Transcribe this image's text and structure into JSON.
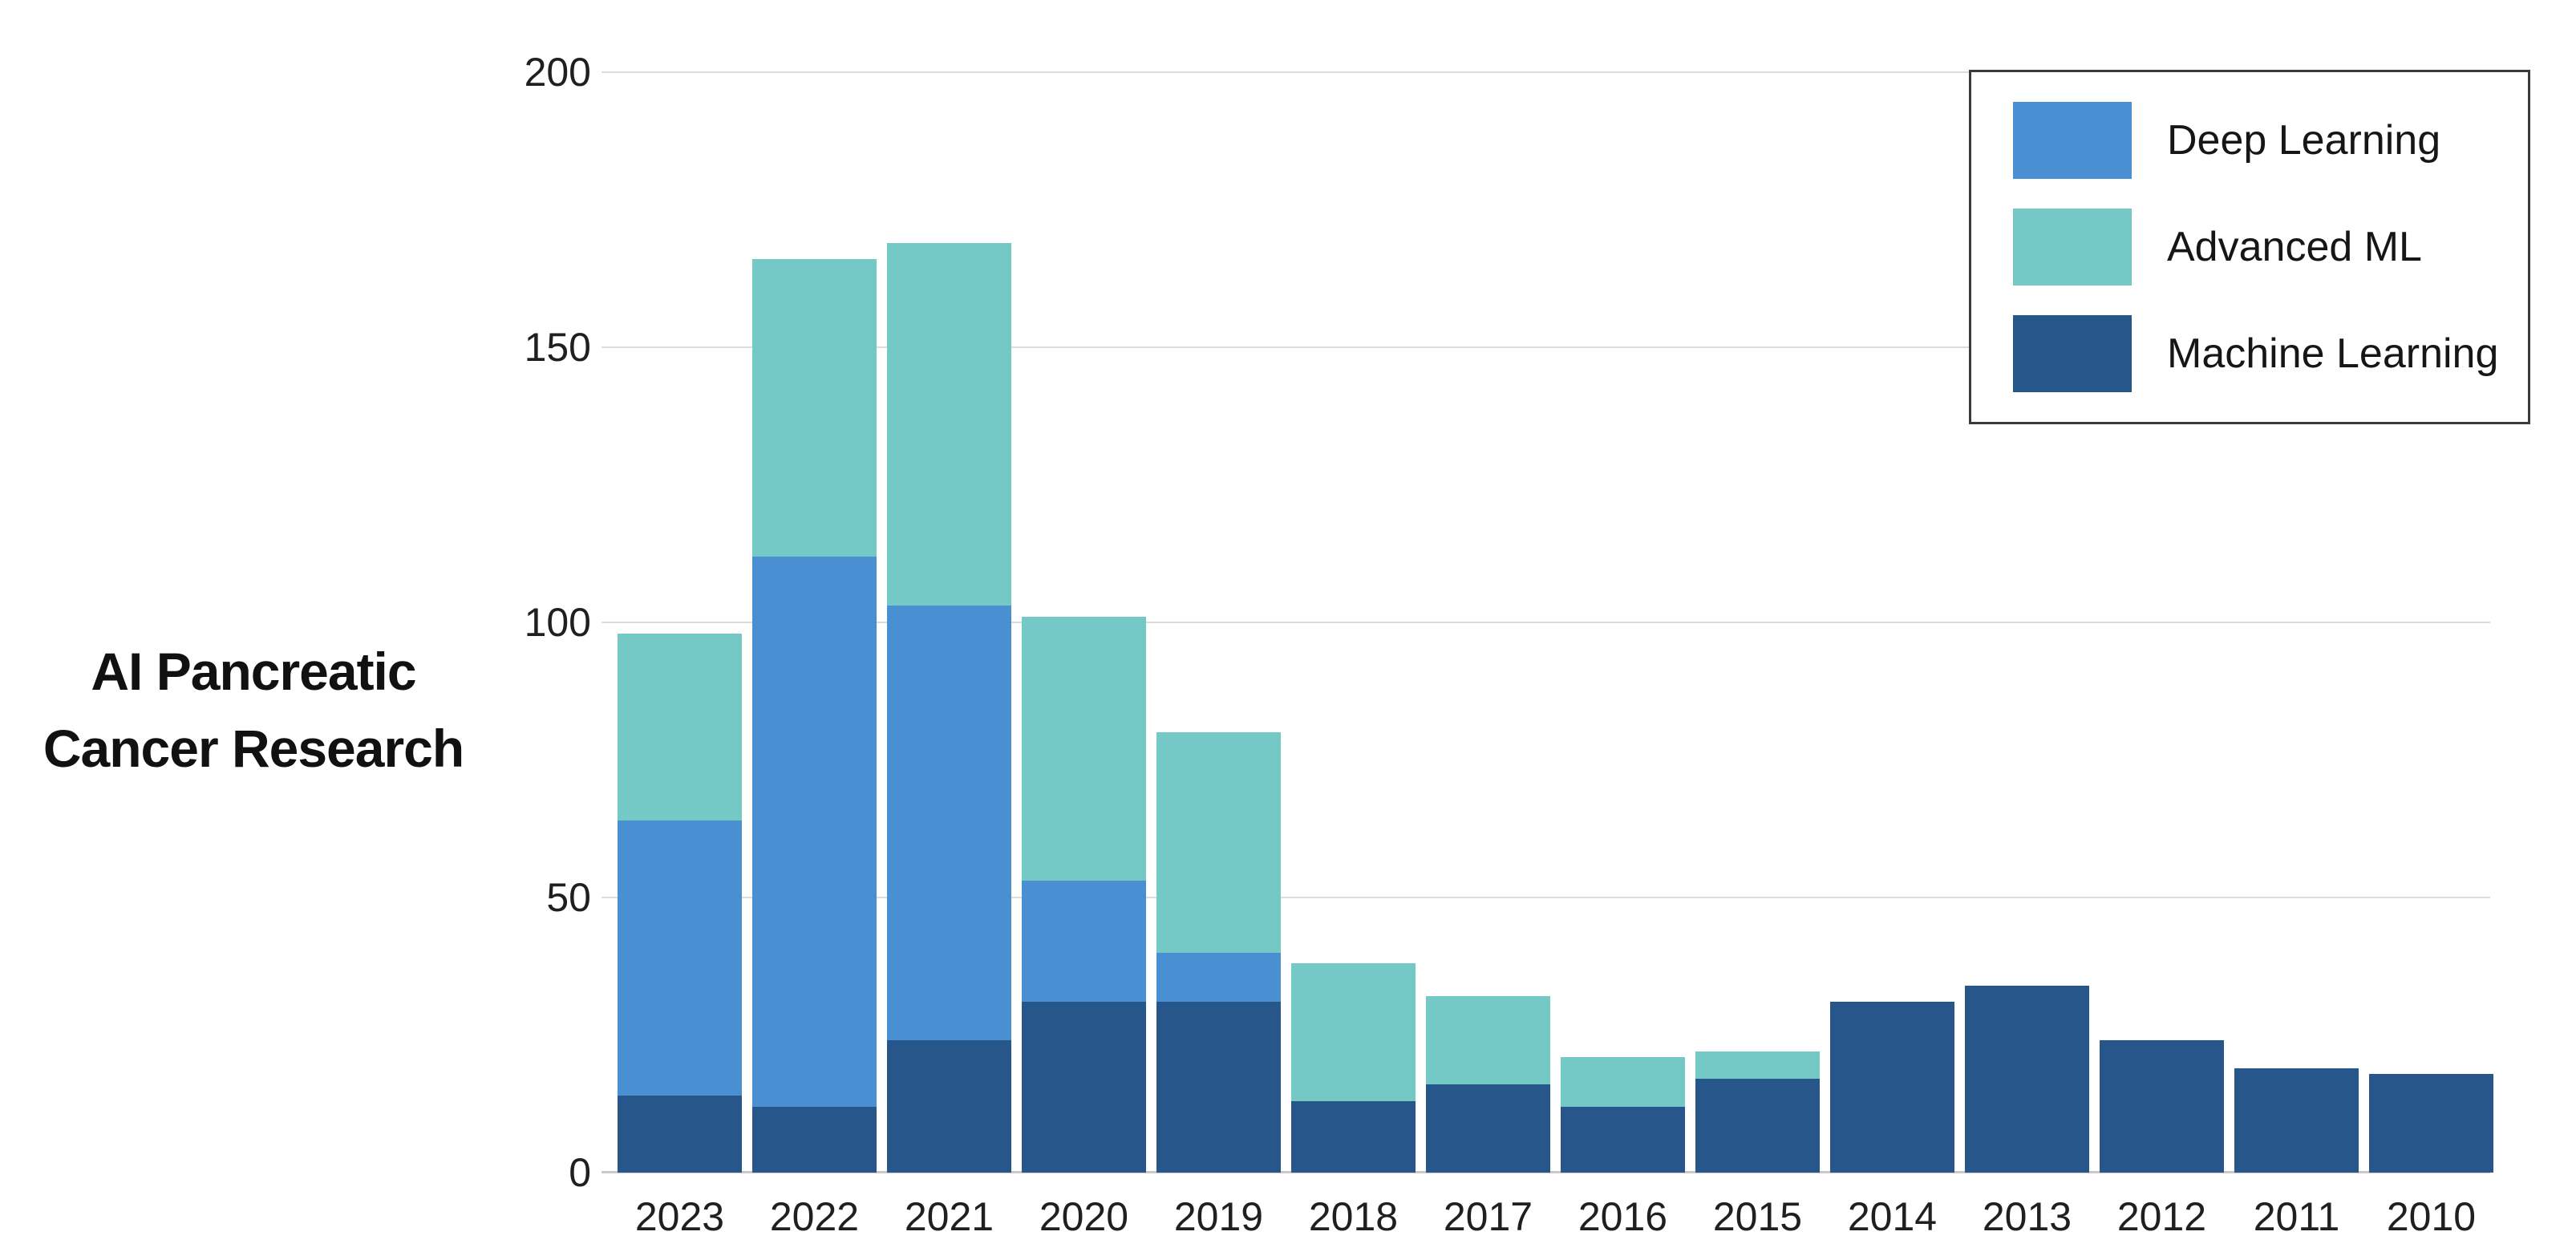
{
  "title": {
    "line1": "AI Pancreatic",
    "line2": "Cancer Research"
  },
  "colors": {
    "deep_learning": "#4B8FD3",
    "advanced_ml": "#74C8C5",
    "machine_learning": "#27568A",
    "gridline": "#DCDCDC",
    "axis_line": "#C9C9C9",
    "text": "#1F1F1F",
    "legend_border": "#3B3B3B",
    "background": "#FFFFFF"
  },
  "chart_data": {
    "type": "bar",
    "stacked": true,
    "title": "AI Pancreatic Cancer Research",
    "xlabel": "",
    "ylabel": "",
    "categories": [
      "2023",
      "2022",
      "2021",
      "2020",
      "2019",
      "2018",
      "2017",
      "2016",
      "2015",
      "2014",
      "2013",
      "2012",
      "2011",
      "2010"
    ],
    "series": [
      {
        "name": "Deep Learning",
        "color_key": "deep_learning",
        "values": [
          50,
          100,
          79,
          22,
          9,
          0,
          0,
          0,
          0,
          0,
          0,
          0,
          0,
          0
        ]
      },
      {
        "name": "Advanced ML",
        "color_key": "advanced_ml",
        "values": [
          34,
          54,
          66,
          48,
          40,
          25,
          16,
          9,
          5,
          0,
          0,
          0,
          0,
          0
        ]
      },
      {
        "name": "Machine Learning",
        "color_key": "machine_learning",
        "values": [
          14,
          12,
          24,
          31,
          31,
          13,
          16,
          12,
          17,
          31,
          34,
          24,
          19,
          18
        ]
      }
    ],
    "stack_order_bottom_to_top": [
      "Machine Learning",
      "Deep Learning",
      "Advanced ML"
    ],
    "totals": [
      98,
      166,
      169,
      101,
      80,
      38,
      32,
      21,
      22,
      31,
      34,
      24,
      19,
      18
    ],
    "yticks": [
      0,
      50,
      100,
      150,
      200
    ],
    "ylim": [
      0,
      200
    ],
    "grid": "horizontal",
    "legend_position": "top-right",
    "legend_order": [
      "Deep Learning",
      "Advanced ML",
      "Machine Learning"
    ]
  }
}
